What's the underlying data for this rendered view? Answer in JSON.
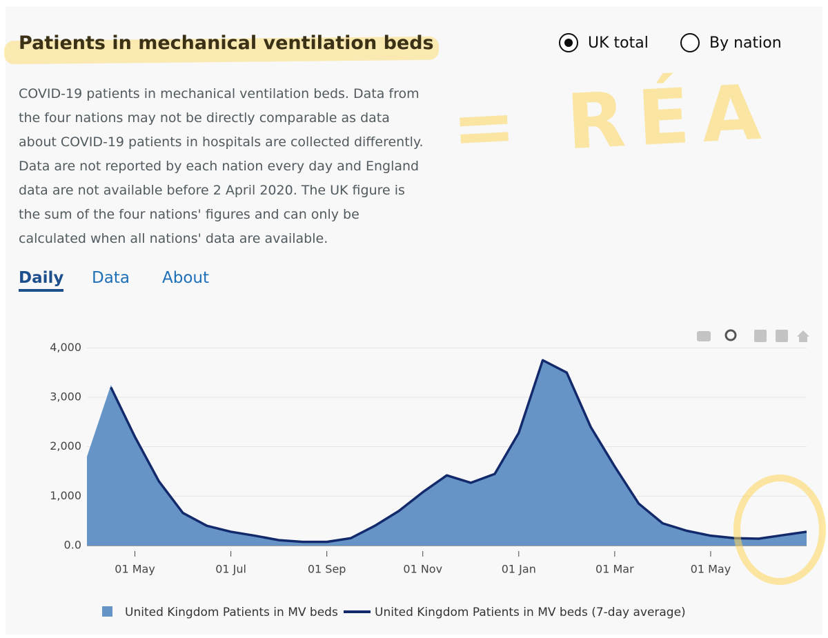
{
  "header": {
    "title": "Patients in mechanical ventilation beds",
    "options": [
      "UK total",
      "By nation"
    ],
    "description": "COVID-19 patients in mechanical ventilation beds. Data from the four nations may not be directly comparable as data about COVID-19 patients in hospitals are collected differently. Data are not reported by each nation every day and England data are not available before 2 April 2020. The UK figure is the sum of the four nations' figures and can only be calculated when all nations' data are available.",
    "annotation": "= RÉA"
  },
  "tabs": [
    "Daily",
    "Data",
    "About"
  ],
  "chart_data": {
    "type": "area",
    "categories": [
      null,
      null,
      "01 May",
      null,
      null,
      null,
      "01 Jul",
      null,
      null,
      null,
      "01 Sep",
      null,
      null,
      null,
      "01 Nov",
      null,
      null,
      null,
      "01 Jan",
      null,
      null,
      null,
      "01 Mar",
      null,
      null,
      null,
      "01 May",
      null,
      null,
      null,
      null
    ],
    "series": [
      {
        "name": "United Kingdom Patients in MV beds",
        "color": "#6794c6",
        "values": [
          1800,
          3250,
          2200,
          1300,
          650,
          400,
          280,
          200,
          110,
          75,
          75,
          150,
          400,
          700,
          1100,
          1420,
          1270,
          1450,
          2300,
          3750,
          3500,
          2400,
          1600,
          850,
          450,
          300,
          200,
          150,
          140,
          210,
          290
        ]
      },
      {
        "name": "United Kingdom Patients in MV beds (7-day average)",
        "color": "#12296b",
        "values": [
          null,
          3200,
          2200,
          1300,
          660,
          400,
          280,
          200,
          110,
          75,
          75,
          150,
          400,
          700,
          1080,
          1420,
          1270,
          1450,
          2280,
          3750,
          3500,
          2400,
          1600,
          850,
          450,
          300,
          200,
          150,
          140,
          210,
          280
        ]
      }
    ],
    "ylim": [
      0,
      4200
    ],
    "yticks": [
      {
        "value": 0,
        "label": "0.0"
      },
      {
        "value": 1000,
        "label": "1,000"
      },
      {
        "value": 2000,
        "label": "2,000"
      },
      {
        "value": 3000,
        "label": "3,000"
      },
      {
        "value": 4000,
        "label": "4,000"
      }
    ],
    "grid": true
  }
}
